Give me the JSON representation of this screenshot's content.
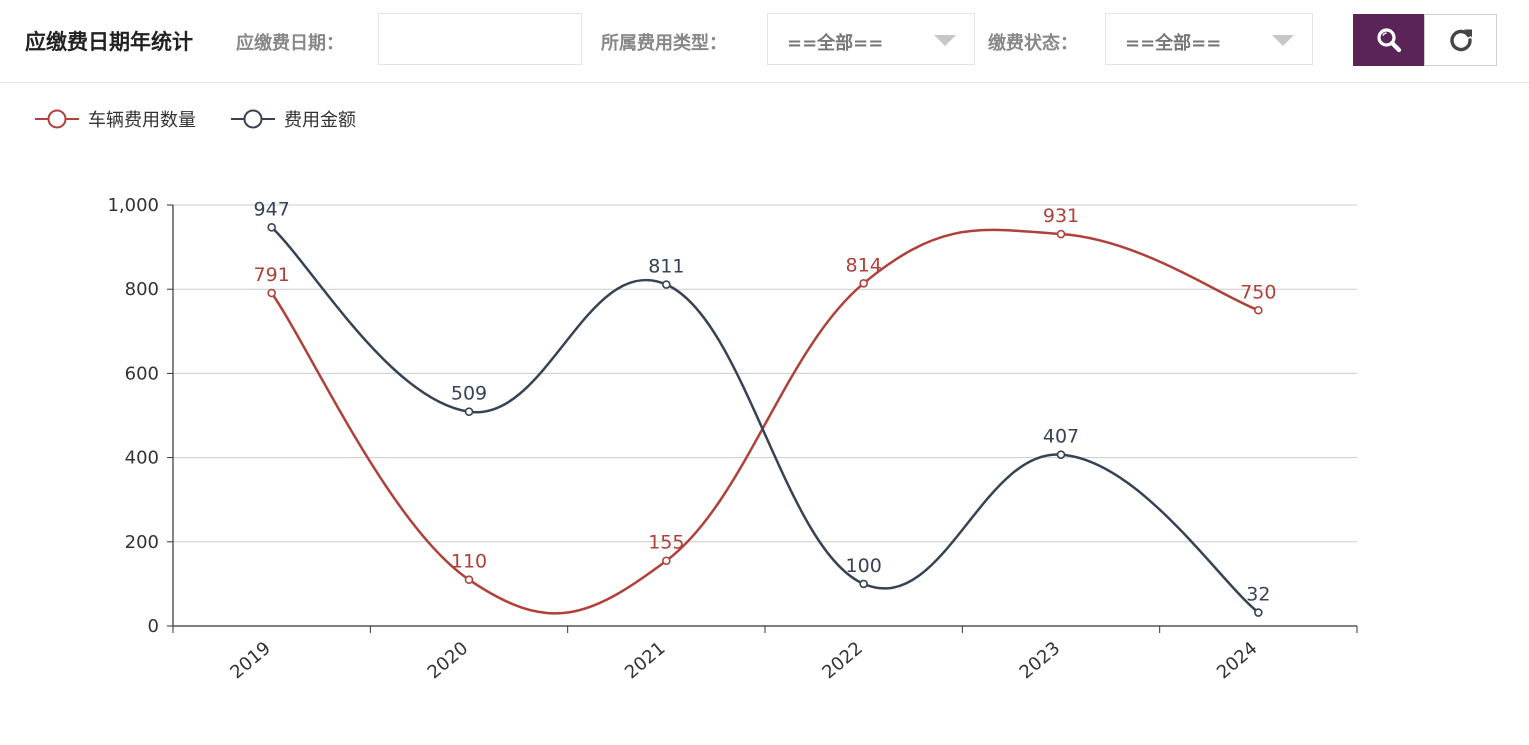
{
  "header": {
    "title": "应缴费日期年统计",
    "date_label": "应缴费日期：",
    "date_value": "",
    "type_label": "所属费用类型：",
    "type_value": "==全部==",
    "status_label": "缴费状态：",
    "status_value": "==全部==",
    "search_icon": "search-icon",
    "refresh_icon": "refresh-icon"
  },
  "colors": {
    "accent": "#5b2459",
    "series_count": "#b0403a",
    "series_amount": "#364355",
    "grid": "#cccccc"
  },
  "chart_data": {
    "type": "line",
    "smooth": true,
    "categories": [
      "2019",
      "2020",
      "2021",
      "2022",
      "2023",
      "2024"
    ],
    "series": [
      {
        "name": "车辆费用数量",
        "color": "#b0403a",
        "values": [
          791,
          110,
          155,
          814,
          931,
          750
        ]
      },
      {
        "name": "费用金额",
        "color": "#364355",
        "values": [
          947,
          509,
          811,
          100,
          407,
          32
        ]
      }
    ],
    "ylim": [
      0,
      1000
    ],
    "yticks": [
      "0",
      "200",
      "400",
      "600",
      "800",
      "1,000"
    ],
    "grid": true,
    "legend": "top-left",
    "data_labels": true
  }
}
